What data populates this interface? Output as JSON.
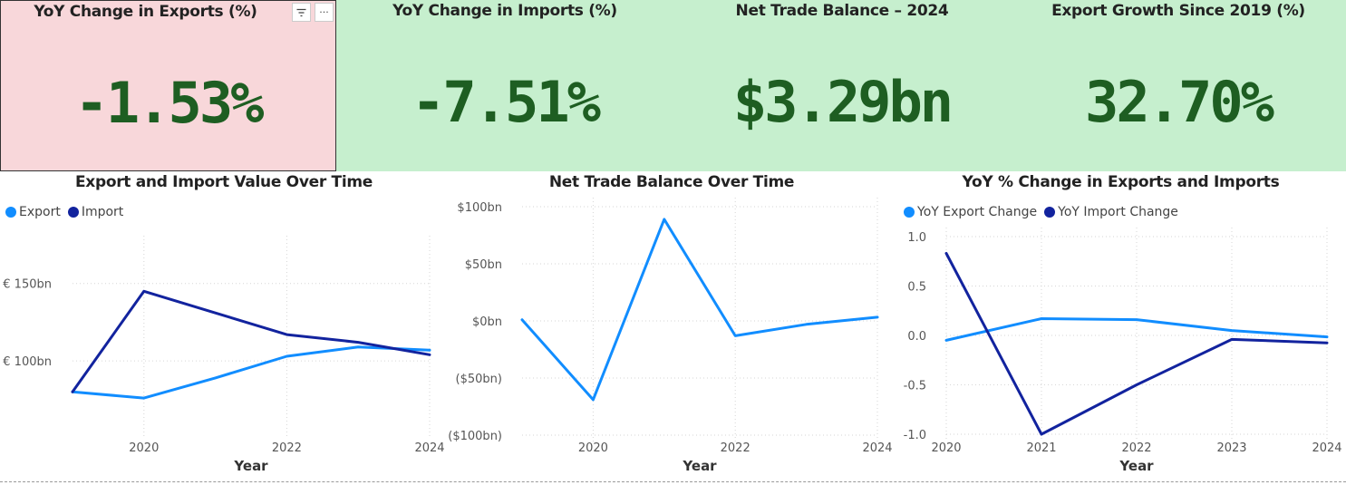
{
  "kpis": [
    {
      "title": "YoY Change in Exports (%)",
      "value": "-1.53%"
    },
    {
      "title": "YoY Change in Imports (%)",
      "value": "-7.51%"
    },
    {
      "title": "Net Trade Balance – 2024",
      "value": "$3.29bn"
    },
    {
      "title": "Export Growth Since 2019 (%)",
      "value": "32.70%"
    }
  ],
  "visual_tools": {
    "filter_icon": "filter-icon",
    "more_icon": "more-options-icon",
    "more_label": "···",
    "filter_label": "≡"
  },
  "colors": {
    "kpi_bg": "#c6efce",
    "kpi_selected_bg": "#f8d7da",
    "kpi_value": "#1e5e22",
    "export": "#118dff",
    "import": "#12239e"
  },
  "charts": [
    {
      "title": "Export and Import Value Over Time",
      "xlabel": "Year"
    },
    {
      "title": "Net Trade Balance Over Time",
      "xlabel": "Year"
    },
    {
      "title": "YoY % Change in Exports and Imports",
      "xlabel": "Year"
    }
  ],
  "chart_data": [
    {
      "type": "line",
      "title": "Export and Import Value Over Time",
      "xlabel": "Year",
      "ylabel": "",
      "x": [
        2019,
        2020,
        2021,
        2022,
        2023,
        2024
      ],
      "xticks": [
        2020,
        2022,
        2024
      ],
      "xtick_labels": [
        "2020",
        "2022",
        "2024"
      ],
      "yticks": [
        100,
        150
      ],
      "ytick_labels": [
        "€ 100bn",
        "€ 150bn"
      ],
      "ylim": [
        55,
        175
      ],
      "xlim": [
        2019,
        2024
      ],
      "legend": "top-left",
      "grid": true,
      "series": [
        {
          "name": "Export",
          "values": [
            80,
            76,
            89,
            103,
            109,
            107
          ],
          "color": "#118dff"
        },
        {
          "name": "Import",
          "values": [
            80,
            145,
            131,
            117,
            112,
            104
          ],
          "color": "#12239e"
        }
      ]
    },
    {
      "type": "line",
      "title": "Net Trade Balance Over Time",
      "xlabel": "Year",
      "ylabel": "",
      "x": [
        2019,
        2020,
        2021,
        2022,
        2023,
        2024
      ],
      "xticks": [
        2020,
        2022,
        2024
      ],
      "xtick_labels": [
        "2020",
        "2022",
        "2024"
      ],
      "yticks": [
        -100,
        -50,
        0,
        50,
        100
      ],
      "ytick_labels": [
        "($100bn)",
        "($50bn)",
        "$0bn",
        "$50bn",
        "$100bn"
      ],
      "ylim": [
        -100,
        100
      ],
      "xlim": [
        2019,
        2024
      ],
      "legend": "none",
      "grid": true,
      "series": [
        {
          "name": "",
          "values": [
            1,
            -69,
            89,
            -13,
            -3,
            3.29
          ],
          "color": "#118dff"
        }
      ]
    },
    {
      "type": "line",
      "title": "YoY % Change in Exports and Imports",
      "xlabel": "Year",
      "ylabel": "",
      "x": [
        2020,
        2021,
        2022,
        2023,
        2024
      ],
      "xticks": [
        2020,
        2021,
        2022,
        2023,
        2024
      ],
      "xtick_labels": [
        "2020",
        "2021",
        "2022",
        "2023",
        "2024"
      ],
      "yticks": [
        -1.0,
        -0.5,
        0.0,
        0.5,
        1.0
      ],
      "ytick_labels": [
        "-1.0",
        "-0.5",
        "0.0",
        "0.5",
        "1.0"
      ],
      "ylim": [
        -1.0,
        1.0
      ],
      "xlim": [
        2020,
        2024
      ],
      "legend": "top-left",
      "grid": true,
      "series": [
        {
          "name": "YoY Export Change",
          "values": [
            -0.05,
            0.17,
            0.16,
            0.05,
            -0.015
          ],
          "color": "#118dff"
        },
        {
          "name": "YoY Import Change",
          "values": [
            0.83,
            -1.0,
            -0.5,
            -0.04,
            -0.075
          ],
          "color": "#12239e"
        }
      ]
    }
  ]
}
